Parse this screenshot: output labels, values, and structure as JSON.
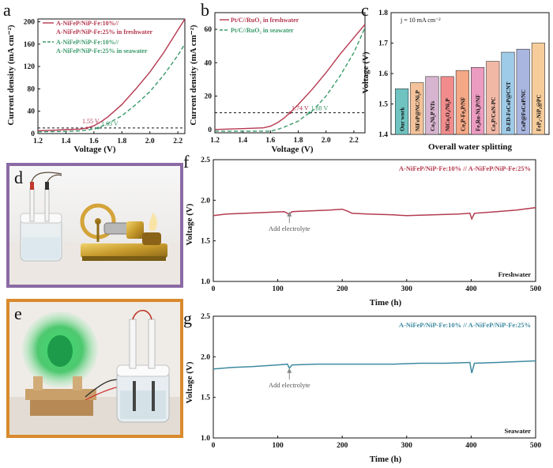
{
  "panel_labels": {
    "a": "a",
    "b": "b",
    "c": "c",
    "d": "d",
    "e": "e",
    "f": "f",
    "g": "g"
  },
  "colors": {
    "freshwater": "#b5384f",
    "seawater": "#3a9a6a",
    "stability_fresh": "#b33b50",
    "stability_sea": "#3e8aa0",
    "frame_d": "#8b6aa5",
    "frame_e": "#d98a2c"
  },
  "chart_data": [
    {
      "id": "a",
      "type": "line",
      "xlabel": "Voltage (V)",
      "ylabel": "Current density (mA cm⁻²)",
      "xlim": [
        1.2,
        2.25
      ],
      "ylim": [
        0,
        205
      ],
      "xticks": [
        1.2,
        1.4,
        1.6,
        1.8,
        2.0,
        2.2
      ],
      "xtick_labels": [
        "1.2",
        "1.4",
        "1.6",
        "1.8",
        "2.0",
        "2.2"
      ],
      "yticks": [
        0,
        40,
        80,
        120,
        160,
        200
      ],
      "ytick_labels": [
        "0",
        "40",
        "80",
        "120",
        "160",
        "200"
      ],
      "reference_line_y": 10,
      "series": [
        {
          "name": "A-NiFeP/NiP-Fe:10%// A-NiFeP/NiP-Fe:25% in freshwater",
          "style": "solid",
          "x": [
            1.2,
            1.3,
            1.4,
            1.5,
            1.55,
            1.6,
            1.65,
            1.7,
            1.8,
            1.9,
            2.0,
            2.1,
            2.2,
            2.25
          ],
          "y": [
            5,
            6,
            7,
            8,
            10,
            14,
            21,
            30,
            52,
            80,
            110,
            145,
            185,
            205
          ]
        },
        {
          "name": "A-NiFeP/NiP-Fe:10%// A-NiFeP/NiP-Fe:25% in seawater",
          "style": "dashed",
          "x": [
            1.2,
            1.3,
            1.4,
            1.5,
            1.6,
            1.63,
            1.7,
            1.8,
            1.9,
            2.0,
            2.1,
            2.2,
            2.25
          ],
          "y": [
            3,
            3.5,
            4,
            5,
            8,
            10,
            18,
            32,
            52,
            75,
            105,
            140,
            160
          ]
        }
      ],
      "annotations": [
        {
          "text": "1.55 V",
          "x": 1.55,
          "y": 10,
          "series": 0
        },
        {
          "text": "1.63 V",
          "x": 1.63,
          "y": 10,
          "series": 1
        }
      ]
    },
    {
      "id": "b",
      "type": "line",
      "xlabel": "Voltage (V)",
      "ylabel": "Current density (mA cm⁻²)",
      "xlim": [
        1.2,
        2.28
      ],
      "ylim": [
        -2,
        70
      ],
      "xticks": [
        1.2,
        1.4,
        1.6,
        1.8,
        2.0,
        2.2
      ],
      "xtick_labels": [
        "1.2",
        "1.4",
        "1.6",
        "1.8",
        "2.0",
        "2.2"
      ],
      "yticks": [
        0,
        20,
        40,
        60
      ],
      "ytick_labels": [
        "0",
        "20",
        "40",
        "60"
      ],
      "reference_line_y": 10,
      "series": [
        {
          "name": "Pt/C//RuO₂ in freshwater",
          "style": "solid",
          "x": [
            1.2,
            1.4,
            1.55,
            1.6,
            1.65,
            1.7,
            1.74,
            1.8,
            1.9,
            2.0,
            2.1,
            2.2,
            2.28
          ],
          "y": [
            0,
            0.5,
            1,
            2,
            4,
            7,
            10,
            15,
            24,
            34,
            45,
            55,
            63
          ]
        },
        {
          "name": "Pt/C//RuO₂ in seawater",
          "style": "dashed",
          "x": [
            1.2,
            1.4,
            1.6,
            1.65,
            1.7,
            1.8,
            1.88,
            1.9,
            2.0,
            2.1,
            2.2,
            2.28
          ],
          "y": [
            -1,
            -1,
            -1,
            0,
            1.5,
            5,
            10,
            11,
            20,
            32,
            46,
            61
          ]
        }
      ],
      "annotations": [
        {
          "text": "1.74 V",
          "x": 1.74,
          "y": 10,
          "series": 0
        },
        {
          "text": "1.88 V",
          "x": 1.88,
          "y": 10,
          "series": 1
        }
      ]
    },
    {
      "id": "c",
      "type": "bar",
      "xlabel": "Overall water splitting",
      "ylabel": "Voltage (V)",
      "annotation": "j = 10 mA cm⁻²",
      "ylim": [
        1.4,
        1.8
      ],
      "yticks": [
        1.4,
        1.5,
        1.6,
        1.7,
        1.8
      ],
      "ytick_labels": [
        "1.4",
        "1.5",
        "1.6",
        "1.7",
        "1.8"
      ],
      "categories": [
        "Our work",
        "NiFeP@NC/Ni₂P",
        "Co₃Ni₂P NTs",
        "NiCo₂O₄/Ni₂P",
        "Co₂P-Fe₂P/NF",
        "Fe₂Ru-Ni₂P/NF",
        "Co₂P/CoN-PC",
        "D-ED-FeCoP@CNT",
        "CoP@FeCoP/NC",
        "FeP₂-NiP₂@PC"
      ],
      "values": [
        1.55,
        1.57,
        1.59,
        1.59,
        1.61,
        1.62,
        1.64,
        1.67,
        1.68,
        1.7
      ],
      "bar_colors": [
        "#6fc3c0",
        "#f3c29a",
        "#d7b4cf",
        "#f28c8c",
        "#f4a886",
        "#ec9cc0",
        "#f2b8a6",
        "#9ecbe8",
        "#a9b6e0",
        "#f6cc9b"
      ]
    },
    {
      "id": "f",
      "type": "line",
      "xlabel": "Time (h)",
      "ylabel": "Voltage (V)",
      "xlim": [
        0,
        500
      ],
      "ylim": [
        1.0,
        2.5
      ],
      "xticks": [
        0,
        100,
        200,
        300,
        400,
        500
      ],
      "xtick_labels": [
        "0",
        "100",
        "200",
        "300",
        "400",
        "500"
      ],
      "yticks": [
        1.0,
        1.5,
        2.0,
        2.5
      ],
      "ytick_labels": [
        "1.0",
        "1.5",
        "2.0",
        "2.5"
      ],
      "legend": "A-NiFeP/NiP-Fe:10% // A-NiFeP/NiP-Fe:25%",
      "corner_label": "Freshwater",
      "annotation": "Add electrolyte",
      "annotation_x": 118,
      "series": [
        {
          "name": "A-NiFeP/NiP-Fe:10% // A-NiFeP/NiP-Fe:25%",
          "x": [
            0,
            20,
            50,
            80,
            110,
            115,
            118,
            122,
            150,
            180,
            200,
            210,
            215,
            240,
            280,
            300,
            340,
            380,
            398,
            401,
            405,
            440,
            470,
            500
          ],
          "y": [
            1.81,
            1.83,
            1.84,
            1.85,
            1.86,
            1.84,
            1.83,
            1.86,
            1.87,
            1.88,
            1.89,
            1.86,
            1.84,
            1.83,
            1.82,
            1.81,
            1.82,
            1.83,
            1.84,
            1.77,
            1.84,
            1.86,
            1.88,
            1.91
          ]
        }
      ]
    },
    {
      "id": "g",
      "type": "line",
      "xlabel": "Time (h)",
      "ylabel": "Voltage (V)",
      "xlim": [
        0,
        500
      ],
      "ylim": [
        1.0,
        2.5
      ],
      "xticks": [
        0,
        100,
        200,
        300,
        400,
        500
      ],
      "xtick_labels": [
        "0",
        "100",
        "200",
        "300",
        "400",
        "500"
      ],
      "yticks": [
        1.0,
        1.5,
        2.0,
        2.5
      ],
      "ytick_labels": [
        "1.0",
        "1.5",
        "2.0",
        "2.5"
      ],
      "legend": "A-NiFeP/NiP-Fe:10% // A-NiFeP/NiP-Fe:25%",
      "corner_label": "Seawater",
      "annotation": "Add electrolyte",
      "annotation_x": 118,
      "series": [
        {
          "name": "A-NiFeP/NiP-Fe:10% // A-NiFeP/NiP-Fe:25%",
          "x": [
            0,
            30,
            60,
            100,
            115,
            118,
            122,
            160,
            200,
            240,
            280,
            320,
            360,
            398,
            401,
            405,
            440,
            470,
            500
          ],
          "y": [
            1.85,
            1.87,
            1.88,
            1.9,
            1.91,
            1.86,
            1.9,
            1.91,
            1.91,
            1.91,
            1.91,
            1.92,
            1.92,
            1.93,
            1.8,
            1.92,
            1.93,
            1.94,
            1.95
          ]
        }
      ]
    }
  ]
}
